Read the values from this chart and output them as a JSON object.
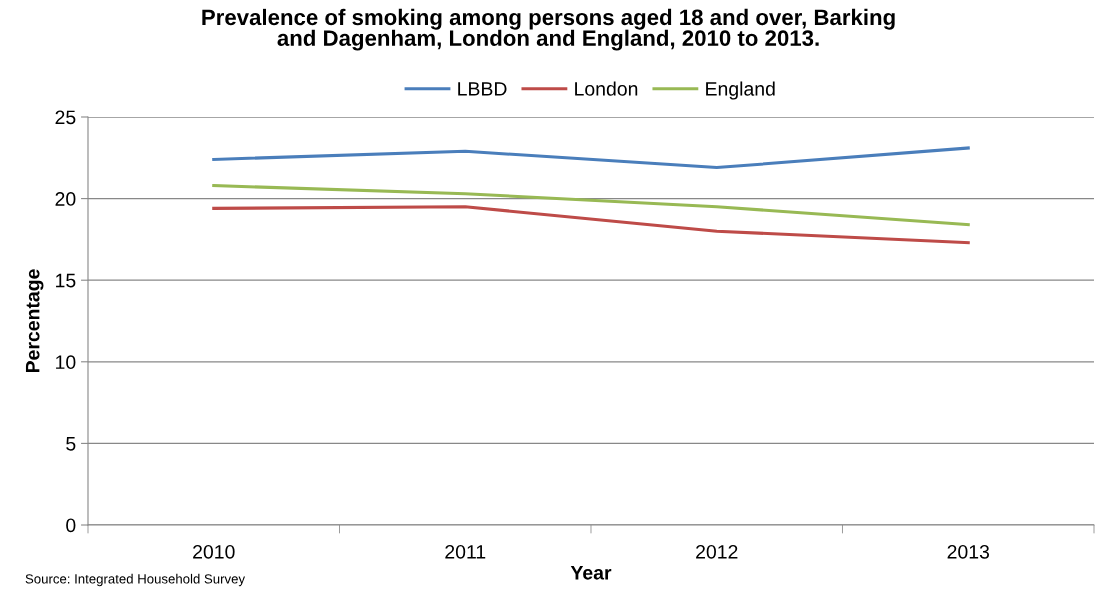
{
  "chart_data": {
    "type": "line",
    "title": "Prevalence of smoking among persons aged 18 and over, Barking\nand Dagenham, London and England, 2010 to 2013.",
    "xlabel": "Year",
    "ylabel": "Percentage",
    "categories": [
      "2010",
      "2011",
      "2012",
      "2013"
    ],
    "series": [
      {
        "name": "LBBD",
        "color": "#4a7ebb",
        "values": [
          22.4,
          22.9,
          21.9,
          23.1
        ]
      },
      {
        "name": "London",
        "color": "#be4b48",
        "values": [
          19.4,
          19.5,
          18.0,
          17.3
        ]
      },
      {
        "name": "England",
        "color": "#98b954",
        "values": [
          20.8,
          20.3,
          19.5,
          18.4
        ]
      }
    ],
    "ylim": [
      0,
      25
    ],
    "yticks": [
      0,
      5,
      10,
      15,
      20,
      25
    ],
    "grid": "y",
    "legend": "top",
    "marker": "none",
    "line_style": "solid",
    "annotations": [
      "Source: Integrated Household Survey"
    ]
  }
}
